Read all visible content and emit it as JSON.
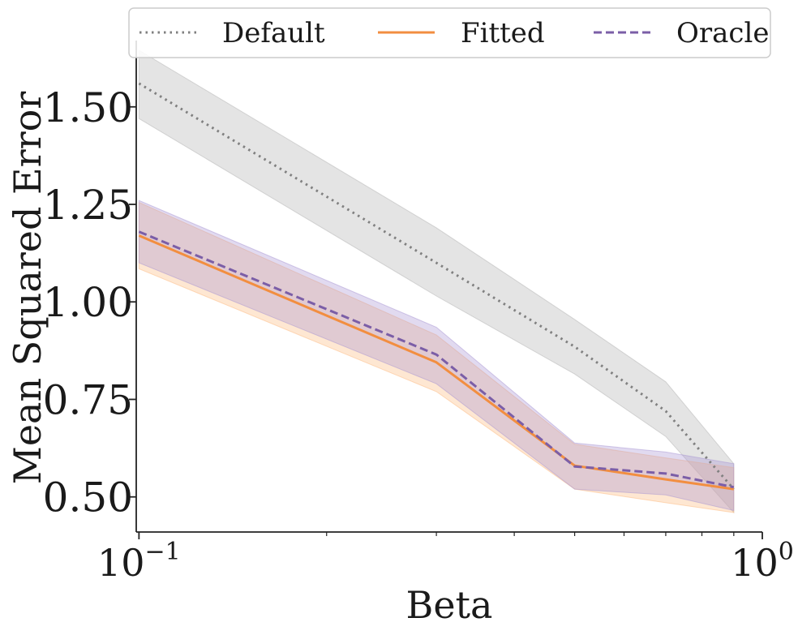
{
  "chart_data": {
    "type": "line",
    "xscale": "log",
    "xlabel": "Beta",
    "ylabel": "Mean Squared Error",
    "xlim": [
      0.099,
      1.0
    ],
    "ylim": [
      0.41,
      1.67
    ],
    "x": [
      0.1,
      0.3,
      0.5,
      0.7,
      0.9
    ],
    "x_ticks": [
      {
        "value": 0.1,
        "base": "10",
        "exp": "−1"
      },
      {
        "value": 1.0,
        "base": "10",
        "exp": "0"
      }
    ],
    "x_minor_ticks": [
      0.2,
      0.3,
      0.4,
      0.5,
      0.6,
      0.7,
      0.8,
      0.9
    ],
    "y_ticks": [
      {
        "value": 0.5,
        "label": "0.50"
      },
      {
        "value": 0.75,
        "label": "0.75"
      },
      {
        "value": 1.0,
        "label": "1.00"
      },
      {
        "value": 1.25,
        "label": "1.25"
      },
      {
        "value": 1.5,
        "label": "1.50"
      }
    ],
    "legend_position": "top",
    "series": [
      {
        "name": "Default",
        "color": "#808080",
        "band_color": "#b3b3b3",
        "style": "dotted",
        "values": [
          1.56,
          1.1,
          0.885,
          0.72,
          0.52
        ],
        "lower": [
          1.47,
          1.015,
          0.815,
          0.655,
          0.46
        ],
        "upper": [
          1.645,
          1.19,
          0.955,
          0.795,
          0.585
        ]
      },
      {
        "name": "Fitted",
        "color": "#f28e40",
        "band_color": "#fdb97f",
        "style": "solid",
        "values": [
          1.17,
          0.845,
          0.58,
          0.545,
          0.52
        ],
        "lower": [
          1.085,
          0.77,
          0.52,
          0.485,
          0.46
        ],
        "upper": [
          1.255,
          0.915,
          0.635,
          0.6,
          0.575
        ]
      },
      {
        "name": "Oracle",
        "color": "#7b5ea7",
        "band_color": "#a895d4",
        "style": "dashed",
        "values": [
          1.18,
          0.865,
          0.578,
          0.56,
          0.525
        ],
        "lower": [
          1.1,
          0.79,
          0.52,
          0.505,
          0.465
        ],
        "upper": [
          1.26,
          0.935,
          0.638,
          0.615,
          0.585
        ]
      }
    ]
  }
}
